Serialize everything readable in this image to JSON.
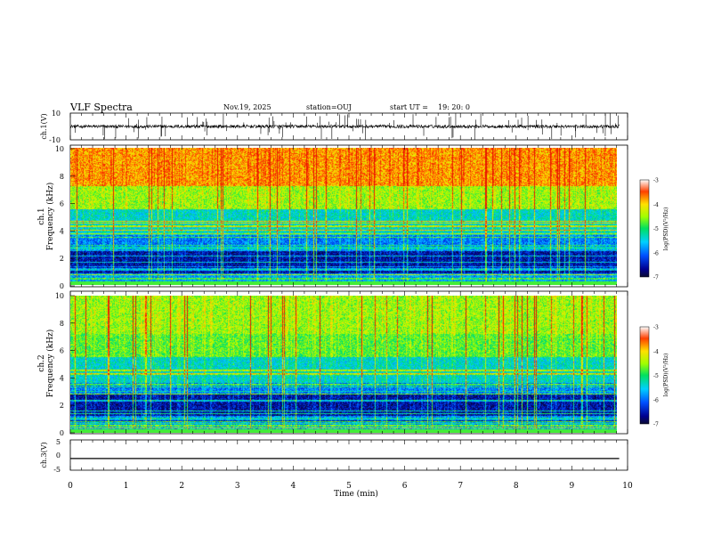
{
  "header": {
    "title": "VLF Spectra",
    "date": "Nov.19, 2025",
    "station": "station=OUJ",
    "start_label": "start  UT  =",
    "start_time": "19: 20: 0"
  },
  "chart_data": [
    {
      "type": "line",
      "name": "ch1-waveform",
      "ylabel": "ch.1(V)",
      "ylim": [
        -10,
        10
      ],
      "yticks": [
        "10",
        "-10"
      ],
      "xlim": [
        0,
        9.85
      ],
      "baseline": 0,
      "noise_amplitude": 1.2,
      "spike_min": -10,
      "spike_max": 10
    },
    {
      "type": "heatmap",
      "name": "ch1-spectrogram",
      "ylabel_top": "ch.1",
      "ylabel": "Frequency  (kHz)",
      "ylim": [
        0,
        10
      ],
      "yticks": [
        "0",
        "2",
        "4",
        "6",
        "8",
        "10"
      ],
      "xlim": [
        0,
        9.85
      ],
      "colorbar": {
        "label": "log(PSD)(V²/Hz)",
        "range": [
          -7,
          -3
        ],
        "ticks": [
          "-3",
          "-4",
          "-5",
          "-6",
          "-7"
        ]
      }
    },
    {
      "type": "heatmap",
      "name": "ch2-spectrogram",
      "ylabel_top": "ch.2",
      "ylabel": "Frequency  (kHz)",
      "ylim": [
        0,
        10
      ],
      "yticks": [
        "0",
        "2",
        "4",
        "6",
        "8",
        "10"
      ],
      "xlim": [
        0,
        9.85
      ],
      "colorbar": {
        "label": "log(PSD)(V²/Hz)",
        "range": [
          -7,
          -3
        ],
        "ticks": [
          "-3",
          "-4",
          "-5",
          "-6",
          "-7"
        ]
      }
    },
    {
      "type": "line",
      "name": "ch3-waveform",
      "ylabel": "ch.3(V)",
      "ylim": [
        -5,
        5
      ],
      "yticks": [
        "5",
        "0",
        "-5"
      ],
      "xlim": [
        0,
        9.85
      ],
      "constant_value": -1.5
    }
  ],
  "xaxis": {
    "label": "Time  (min)",
    "range": [
      0,
      10
    ],
    "ticks": [
      "0",
      "1",
      "2",
      "3",
      "4",
      "5",
      "6",
      "7",
      "8",
      "9",
      "10"
    ]
  }
}
